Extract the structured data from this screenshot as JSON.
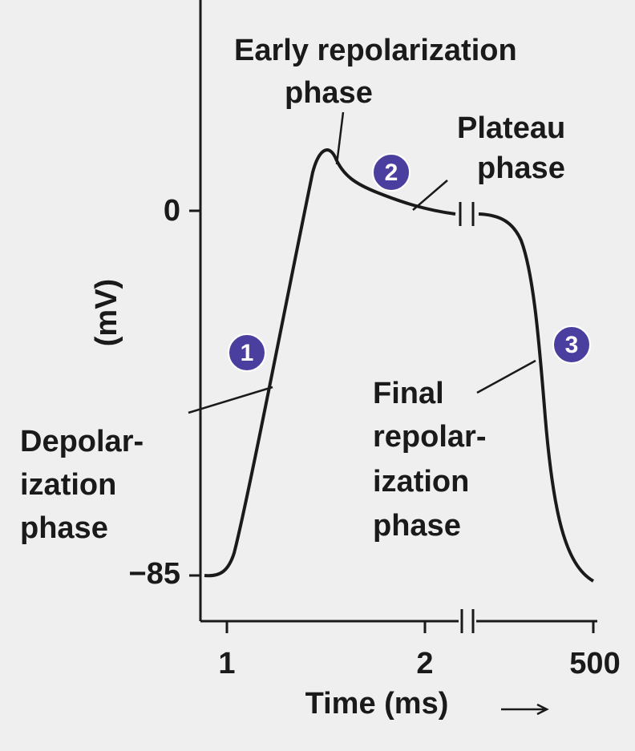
{
  "axes": {
    "y_label": "(mV)",
    "x_label": "Time (ms)",
    "y_ticks": [
      "0",
      "−85"
    ],
    "x_ticks": [
      "1",
      "2",
      "500"
    ]
  },
  "phases": [
    {
      "number": "1",
      "label": [
        "Depolar-",
        "ization",
        "phase"
      ]
    },
    {
      "number": "2",
      "label": [
        "Plateau",
        "phase"
      ]
    },
    {
      "number": "3",
      "label": [
        "Final",
        "repolar-",
        "ization",
        "phase"
      ]
    }
  ],
  "early_repolarization": [
    "Early repolarization",
    "phase"
  ]
}
